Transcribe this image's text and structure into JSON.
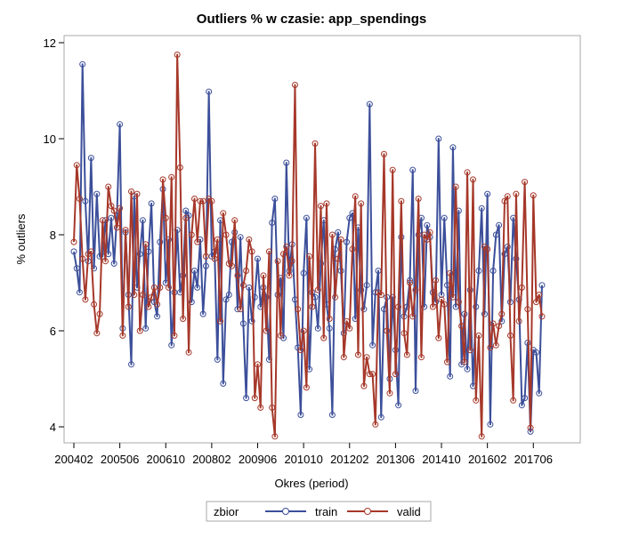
{
  "colors": {
    "train": "#3c4f9a",
    "valid": "#a6382a",
    "frame": "#a9a9a9",
    "background": "#ffffff"
  },
  "chart_data": {
    "type": "line",
    "title": "Outliers % w czasie: app_spendings",
    "xlabel": "Okres (period)",
    "ylabel": "% outliers",
    "ylim": [
      4,
      12
    ],
    "yticks": [
      4,
      6,
      8,
      10,
      12
    ],
    "x_range": [
      "200402",
      "201806"
    ],
    "xticks": [
      "200402",
      "200506",
      "200610",
      "200802",
      "200906",
      "201010",
      "201202",
      "201306",
      "201410",
      "201602",
      "201706"
    ],
    "legend": {
      "title": "zbior",
      "position": "bottom",
      "items": [
        "train",
        "valid"
      ]
    },
    "markers": "circle",
    "grid": false,
    "series": [
      {
        "name": "train",
        "values": [
          7.65,
          7.3,
          6.8,
          11.55,
          8.7,
          7.45,
          9.6,
          7.3,
          8.85,
          7.55,
          7.55,
          8.3,
          7.6,
          8.35,
          7.4,
          8.4,
          10.3,
          6.05,
          8.05,
          6.75,
          5.3,
          8.8,
          6.9,
          7.6,
          8.3,
          6.05,
          7.65,
          8.65,
          6.6,
          6.3,
          7.85,
          8.95,
          7.0,
          7.9,
          5.7,
          6.8,
          8.1,
          6.8,
          7.15,
          8.5,
          8.4,
          6.6,
          7.25,
          6.9,
          7.9,
          6.35,
          7.35,
          10.98,
          7.55,
          7.65,
          5.4,
          8.3,
          4.9,
          6.65,
          6.75,
          7.85,
          8.05,
          6.45,
          7.95,
          6.15,
          4.6,
          6.9,
          6.2,
          6.7,
          7.5,
          6.5,
          6.9,
          6.7,
          5.4,
          8.25,
          8.75,
          6.75,
          7.1,
          5.85,
          9.5,
          7.25,
          7.8,
          6.65,
          5.65,
          4.25,
          7.2,
          8.35,
          5.2,
          6.8,
          6.7,
          6.05,
          7.4,
          8.3,
          6.55,
          6.05,
          4.25,
          7.7,
          8.05,
          7.25,
          5.95,
          7.85,
          8.35,
          8.45,
          6.25,
          8.15,
          6.85,
          6.45,
          6.95,
          10.72,
          5.7,
          6.8,
          7.25,
          4.2,
          6.45,
          6.7,
          5.0,
          6.7,
          5.6,
          4.45,
          7.95,
          6.3,
          6.5,
          7.05,
          9.35,
          4.75,
          8.0,
          8.35,
          6.5,
          8.2,
          7.95,
          6.8,
          6.6,
          10.0,
          6.75,
          8.35,
          6.95,
          5.05,
          9.82,
          6.5,
          8.5,
          5.3,
          6.35,
          5.2,
          6.85,
          4.85,
          6.5,
          7.25,
          8.55,
          6.35,
          8.85,
          4.05,
          7.25,
          8.0,
          8.2,
          6.2,
          7.6,
          7.75,
          6.6,
          8.35,
          7.5,
          6.65,
          4.45,
          4.6,
          5.75,
          3.9,
          5.6,
          5.55,
          4.7,
          6.95
        ]
      },
      {
        "name": "valid",
        "values": [
          7.85,
          9.45,
          8.75,
          7.5,
          6.65,
          7.6,
          7.65,
          6.55,
          5.95,
          6.35,
          8.3,
          7.45,
          9.0,
          8.6,
          8.5,
          8.15,
          8.55,
          5.9,
          8.1,
          6.5,
          8.9,
          6.75,
          8.85,
          6.0,
          6.75,
          7.8,
          6.5,
          6.7,
          6.9,
          6.55,
          6.9,
          9.15,
          8.35,
          6.9,
          9.2,
          5.9,
          11.75,
          9.4,
          6.25,
          8.35,
          5.55,
          8.0,
          8.75,
          7.85,
          8.7,
          8.7,
          7.55,
          8.75,
          8.7,
          7.5,
          7.9,
          6.2,
          8.45,
          8.0,
          7.4,
          7.35,
          8.3,
          7.15,
          6.45,
          6.95,
          7.25,
          7.9,
          7.65,
          4.6,
          5.3,
          4.4,
          7.15,
          6.0,
          7.65,
          4.4,
          3.8,
          7.45,
          5.9,
          7.6,
          7.75,
          7.15,
          7.45,
          11.12,
          6.45,
          5.6,
          6.0,
          4.82,
          7.55,
          6.5,
          9.9,
          6.85,
          8.6,
          5.85,
          8.65,
          6.25,
          8.0,
          6.7,
          7.5,
          7.9,
          5.45,
          6.2,
          6.05,
          7.7,
          8.8,
          5.5,
          8.65,
          4.85,
          5.45,
          5.1,
          5.1,
          4.05,
          6.8,
          6.75,
          9.68,
          6.0,
          4.7,
          9.35,
          5.1,
          6.5,
          8.7,
          5.95,
          5.5,
          7.0,
          6.3,
          6.85,
          8.75,
          5.45,
          8.0,
          7.9,
          8.05,
          6.5,
          7.05,
          5.85,
          6.65,
          6.55,
          5.35,
          7.2,
          6.7,
          9.0,
          6.6,
          6.1,
          5.35,
          9.3,
          5.6,
          9.15,
          4.55,
          5.9,
          3.8,
          7.75,
          7.7,
          5.65,
          6.15,
          5.7,
          6.1,
          6.35,
          8.7,
          8.8,
          5.9,
          4.55,
          8.85,
          6.2,
          6.9,
          9.1,
          6.45,
          3.98,
          8.82,
          6.6,
          6.75,
          6.3
        ]
      }
    ]
  }
}
